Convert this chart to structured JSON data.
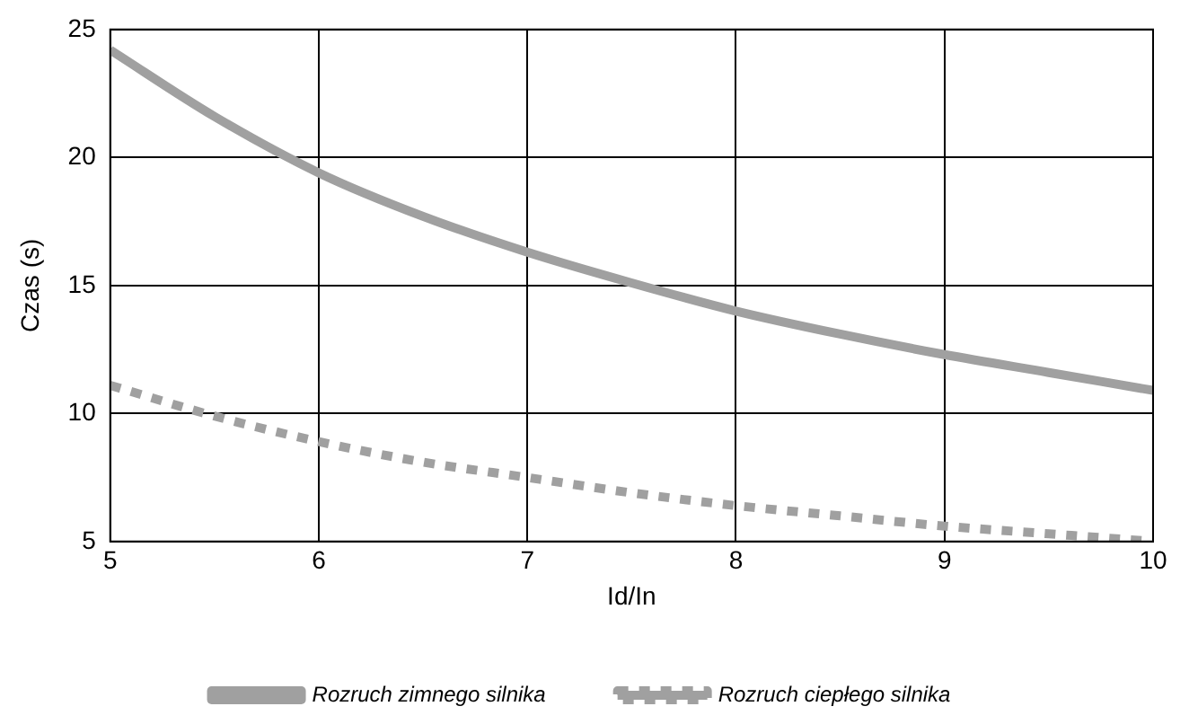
{
  "chart_data": {
    "type": "line",
    "xlabel": "Id/In",
    "ylabel": "Czas (s)",
    "x": [
      5,
      5.5,
      6,
      6.5,
      7,
      7.5,
      8,
      8.5,
      9,
      9.5,
      10
    ],
    "series": [
      {
        "name": "Rozruch zimnego silnika",
        "color": "#a0a0a0",
        "line_style": "solid",
        "values": [
          24.2,
          21.6,
          19.4,
          17.7,
          16.3,
          15.1,
          14.0,
          13.1,
          12.3,
          11.6,
          10.9
        ]
      },
      {
        "name": "Rozruch ciepłego silnika",
        "color": "#a0a0a0",
        "line_style": "dashed",
        "values": [
          11.1,
          9.9,
          8.9,
          8.1,
          7.5,
          6.9,
          6.4,
          6.0,
          5.6,
          5.3,
          5.0
        ]
      }
    ],
    "xlim": [
      5,
      10
    ],
    "xticks": [
      5,
      6,
      7,
      8,
      9,
      10
    ],
    "ylim": [
      5,
      25
    ],
    "yticks": [
      5,
      10,
      15,
      20,
      25
    ],
    "grid": true,
    "legend": "bottom",
    "marker": "none"
  }
}
